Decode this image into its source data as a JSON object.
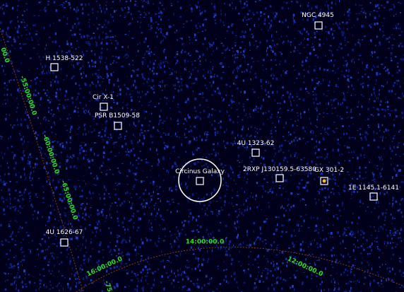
{
  "sources": [
    {
      "label": "NGC 4945"
    },
    {
      "label": "H 1538-522"
    },
    {
      "label": "Cir X-1"
    },
    {
      "label": "PSR B1509-58"
    },
    {
      "label": "4U 1323-62"
    },
    {
      "label": "Circinus Galaxy"
    },
    {
      "label": "2RXP J130159.5-63580"
    },
    {
      "label": "GX 301-2"
    },
    {
      "label": "1E 1145.1-6141"
    },
    {
      "label": "4U 1626-67"
    }
  ],
  "grid_labels": {
    "dec": [
      "00.0",
      "-55:00:00.0",
      "-60:00:00.0",
      "-65:00:00.0",
      "-75"
    ],
    "ra": [
      "16:00:00.0",
      "14:00:00.0",
      "12:00:00.0"
    ]
  }
}
